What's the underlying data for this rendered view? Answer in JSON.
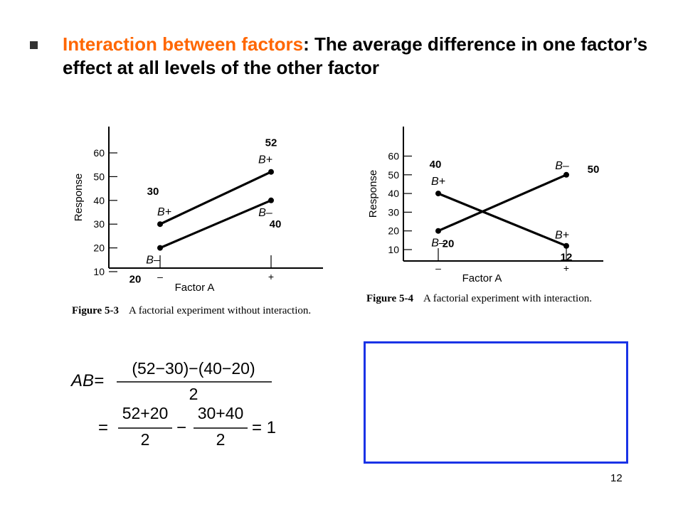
{
  "heading": {
    "key_term": "Interaction between factors",
    "definition": ": The average difference in one factor’s effect at all levels of the other factor"
  },
  "colors": {
    "key_term": "#ff6600",
    "box_border": "#1a33e6"
  },
  "chart_data": [
    {
      "type": "line",
      "xlabel": "Factor A",
      "ylabel": "Response",
      "categories": [
        "–",
        "+"
      ],
      "yticks": [
        10,
        20,
        30,
        40,
        50,
        60
      ],
      "ylim": [
        5,
        70
      ],
      "series": [
        {
          "name": "B+",
          "values": [
            30,
            52
          ]
        },
        {
          "name": "B–",
          "values": [
            20,
            40
          ]
        }
      ],
      "annotations": [
        {
          "text": "30",
          "for": "B+ at –"
        },
        {
          "text": "52",
          "for": "B+ at +"
        },
        {
          "text": "20",
          "for": "B– at –"
        },
        {
          "text": "40",
          "for": "B– at +"
        }
      ],
      "caption": {
        "number": "Figure 5-3",
        "text": "A factorial experiment without interaction."
      }
    },
    {
      "type": "line",
      "xlabel": "Factor A",
      "ylabel": "Response",
      "categories": [
        "–",
        "+"
      ],
      "yticks": [
        10,
        20,
        30,
        40,
        50,
        60
      ],
      "ylim": [
        3,
        70
      ],
      "series": [
        {
          "name": "B+",
          "values": [
            40,
            12
          ]
        },
        {
          "name": "B–",
          "values": [
            20,
            50
          ]
        }
      ],
      "annotations": [
        {
          "text": "40",
          "for": "B+ at –"
        },
        {
          "text": "12",
          "for": "B+ at +"
        },
        {
          "text": "20",
          "for": "B– at –"
        },
        {
          "text": "50",
          "for": "B– at +"
        }
      ],
      "caption": {
        "number": "Figure 5-4",
        "text": "A factorial experiment with interaction."
      }
    }
  ],
  "equation": {
    "lhs": "AB=",
    "line1_numerator": "(52−30)−(40−20)",
    "line1_denominator": "2",
    "line2_equals": "=",
    "frac1_numerator": "52+20",
    "frac1_denominator": "2",
    "minus": "−",
    "frac2_numerator": "30+40",
    "frac2_denominator": "2",
    "result": "= 1"
  },
  "page_number": "12"
}
